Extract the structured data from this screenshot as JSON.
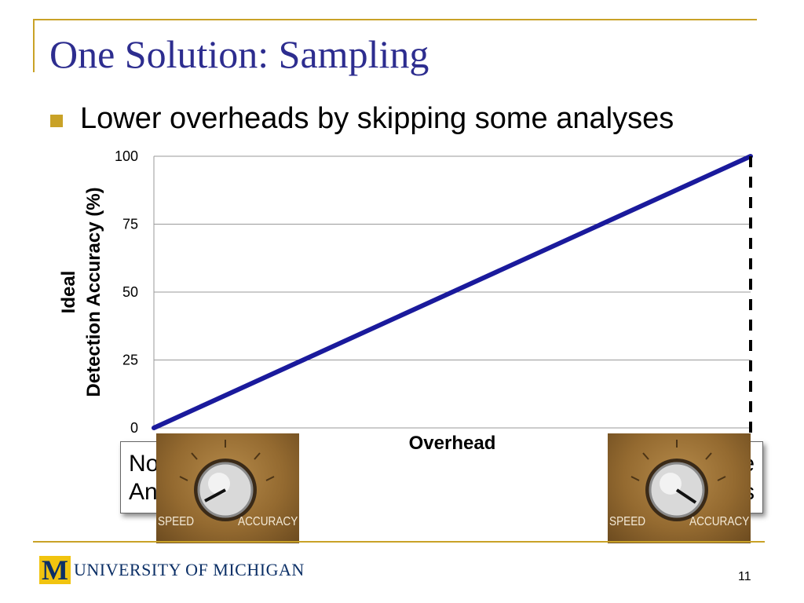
{
  "slide": {
    "title": "One Solution: Sampling",
    "bullet": "Lower overheads by skipping some analyses",
    "page_number": "11",
    "footer_logo": "UNIVERSITY OF MICHIGAN",
    "callout_left": [
      "No",
      "An"
    ],
    "callout_right": [
      "e",
      "s"
    ],
    "knob_labels": {
      "speed": "SPEED",
      "accuracy": "ACCURACY"
    },
    "colors": {
      "accent": "#c9a227",
      "title": "#2d2d8f",
      "line": "#1a1a9c"
    }
  },
  "chart_data": {
    "type": "line",
    "title": "",
    "xlabel": "Overhead",
    "ylabel_lines": [
      "Ideal",
      "Detection Accuracy (%)"
    ],
    "yticks": [
      "0",
      "25",
      "50",
      "75",
      "100"
    ],
    "ylim": [
      0,
      100
    ],
    "xlim": [
      0,
      100
    ],
    "grid": true,
    "series": [
      {
        "x": [
          0,
          100
        ],
        "y": [
          0,
          100
        ]
      }
    ],
    "reference_lines": [
      {
        "orientation": "vertical",
        "x": 100,
        "style": "dashed"
      }
    ]
  }
}
